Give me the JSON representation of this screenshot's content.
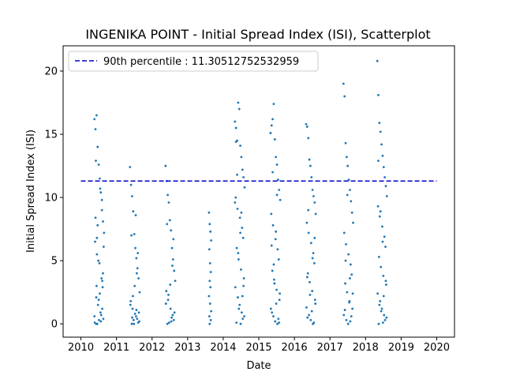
{
  "chart_data": {
    "type": "scatter",
    "title": "INGENIKA POINT - Initial Spread Index (ISI), Scatterplot",
    "xlabel": "Date",
    "ylabel": "Initial Spread Index (ISI)",
    "xlim": [
      2009.5,
      2020.5
    ],
    "ylim": [
      -1.05,
      22.0
    ],
    "x_ticks": [
      "2010",
      "2011",
      "2012",
      "2013",
      "2014",
      "2015",
      "2016",
      "2017",
      "2018",
      "2019",
      "2020"
    ],
    "y_ticks": [
      "0",
      "5",
      "10",
      "15",
      "20"
    ],
    "grid": false,
    "legend_position": "upper-left",
    "reference_line": {
      "label": "90th percentile : 11.30512752532959",
      "value": 11.30512752532959,
      "x_range": [
        2010,
        2020
      ],
      "color": "#0000cc",
      "style": "dashed"
    },
    "point_color": "#1f77b4",
    "series": [
      {
        "x": [
          2010.38,
          2010.41,
          2010.44,
          2010.47,
          2010.5,
          2010.53,
          2010.56,
          2010.59,
          2010.62,
          2010.65,
          2010.4,
          2010.45,
          2010.52,
          2010.58,
          2010.61,
          2010.43,
          2010.48,
          2010.55,
          2010.63,
          2010.39,
          2010.46,
          2010.51,
          2010.57,
          2010.6,
          2010.42,
          2010.54,
          2010.64,
          2010.49,
          2010.44,
          2010.56,
          2010.41,
          2010.62,
          2010.47,
          2010.53,
          2010.38,
          2010.59,
          2010.45,
          2010.5,
          2010.6,
          2010.43
        ],
        "y": [
          16.2,
          15.4,
          16.5,
          14.0,
          12.6,
          11.5,
          10.4,
          9.0,
          8.1,
          7.2,
          6.5,
          5.5,
          4.8,
          3.6,
          2.9,
          2.1,
          1.5,
          0.9,
          0.4,
          0.1,
          0.0,
          0.3,
          0.7,
          1.2,
          12.9,
          10.7,
          6.1,
          5.0,
          3.0,
          0.2,
          8.4,
          4.0,
          7.8,
          2.4,
          0.6,
          9.8,
          6.8,
          1.9,
          3.4,
          0.0
        ]
      },
      {
        "x": [
          2011.38,
          2011.41,
          2011.44,
          2011.47,
          2011.5,
          2011.53,
          2011.56,
          2011.59,
          2011.62,
          2011.65,
          2011.4,
          2011.45,
          2011.52,
          2011.58,
          2011.61,
          2011.43,
          2011.48,
          2011.55,
          2011.63,
          2011.39,
          2011.46,
          2011.51,
          2011.57,
          2011.6,
          2011.42,
          2011.54,
          2011.64,
          2011.49,
          2011.44,
          2011.56
        ],
        "y": [
          12.4,
          11.0,
          10.1,
          8.9,
          7.1,
          6.0,
          5.2,
          4.4,
          3.6,
          2.5,
          1.8,
          1.2,
          0.8,
          0.4,
          0.1,
          0.0,
          0.3,
          0.6,
          0.9,
          1.5,
          2.2,
          3.0,
          4.0,
          5.6,
          7.0,
          8.6,
          0.2,
          0.0,
          0.5,
          1.1
        ]
      },
      {
        "x": [
          2012.38,
          2012.41,
          2012.44,
          2012.47,
          2012.5,
          2012.53,
          2012.56,
          2012.59,
          2012.62,
          2012.65,
          2012.4,
          2012.45,
          2012.52,
          2012.58,
          2012.61,
          2012.43,
          2012.48,
          2012.55,
          2012.63,
          2012.39,
          2012.46,
          2012.51,
          2012.57,
          2012.6,
          2012.42,
          2012.54
        ],
        "y": [
          12.5,
          11.3,
          10.2,
          9.6,
          8.2,
          7.4,
          6.0,
          5.1,
          4.2,
          3.4,
          2.6,
          1.9,
          1.2,
          0.7,
          0.3,
          0.0,
          0.1,
          0.5,
          0.9,
          1.6,
          2.3,
          3.1,
          4.6,
          6.7,
          7.9,
          0.2
        ]
      },
      {
        "x": [
          2013.6,
          2013.62,
          2013.64,
          2013.66,
          2013.61,
          2013.63,
          2013.65,
          2013.62,
          2013.64,
          2013.6,
          2013.63,
          2013.66,
          2013.61,
          2013.65,
          2013.62
        ],
        "y": [
          8.8,
          7.9,
          7.3,
          6.6,
          5.9,
          4.8,
          4.1,
          3.4,
          2.9,
          2.2,
          1.6,
          1.0,
          0.6,
          0.3,
          0.0
        ]
      },
      {
        "x": [
          2014.33,
          2014.36,
          2014.39,
          2014.42,
          2014.45,
          2014.48,
          2014.51,
          2014.54,
          2014.57,
          2014.6,
          2014.35,
          2014.4,
          2014.47,
          2014.53,
          2014.56,
          2014.38,
          2014.43,
          2014.5,
          2014.58,
          2014.34,
          2014.41,
          2014.46,
          2014.52,
          2014.55,
          2014.37,
          2014.49,
          2014.59,
          2014.44,
          2014.39,
          2014.51,
          2014.36,
          2014.57,
          2014.42,
          2014.48,
          2014.33,
          2014.54
        ],
        "y": [
          16.0,
          15.5,
          14.5,
          17.5,
          17.0,
          14.1,
          13.2,
          12.2,
          11.6,
          10.8,
          10.0,
          9.1,
          8.4,
          7.6,
          6.8,
          6.0,
          5.1,
          4.3,
          3.6,
          2.9,
          2.1,
          1.5,
          0.9,
          0.4,
          0.1,
          0.0,
          0.6,
          1.2,
          11.8,
          8.8,
          14.4,
          3.0,
          5.6,
          7.2,
          9.6,
          2.2
        ]
      },
      {
        "x": [
          2015.33,
          2015.36,
          2015.39,
          2015.42,
          2015.45,
          2015.48,
          2015.51,
          2015.54,
          2015.57,
          2015.6,
          2015.35,
          2015.4,
          2015.47,
          2015.53,
          2015.56,
          2015.38,
          2015.43,
          2015.5,
          2015.58,
          2015.34,
          2015.41,
          2015.46,
          2015.52,
          2015.55,
          2015.37,
          2015.49,
          2015.59,
          2015.44,
          2015.39,
          2015.51,
          2015.36,
          2015.57,
          2015.42,
          2015.48
        ],
        "y": [
          15.1,
          15.7,
          16.2,
          17.4,
          14.6,
          13.2,
          12.6,
          11.4,
          10.6,
          9.8,
          8.7,
          7.8,
          6.7,
          5.9,
          5.1,
          4.2,
          3.5,
          2.7,
          1.9,
          1.2,
          0.6,
          0.2,
          0.0,
          0.4,
          0.9,
          1.6,
          2.4,
          3.2,
          12.0,
          10.2,
          6.2,
          0.1,
          4.7,
          7.3
        ]
      },
      {
        "x": [
          2016.33,
          2016.36,
          2016.39,
          2016.42,
          2016.45,
          2016.48,
          2016.51,
          2016.54,
          2016.57,
          2016.6,
          2016.35,
          2016.4,
          2016.47,
          2016.53,
          2016.56,
          2016.38,
          2016.43,
          2016.5,
          2016.58,
          2016.34,
          2016.41,
          2016.46,
          2016.52,
          2016.55,
          2016.37,
          2016.49,
          2016.59,
          2016.44,
          2016.39,
          2016.51,
          2016.36,
          2016.57
        ],
        "y": [
          15.8,
          15.6,
          14.7,
          13.0,
          12.5,
          11.6,
          10.6,
          10.1,
          9.6,
          8.7,
          8.0,
          7.2,
          6.4,
          5.6,
          4.8,
          4.0,
          3.3,
          2.6,
          1.9,
          1.3,
          0.7,
          0.3,
          0.0,
          0.1,
          0.5,
          1.0,
          1.6,
          2.3,
          9.0,
          5.2,
          3.7,
          6.8
        ]
      },
      {
        "x": [
          2017.38,
          2017.41,
          2017.44,
          2017.47,
          2017.5,
          2017.53,
          2017.56,
          2017.59,
          2017.62,
          2017.65,
          2017.4,
          2017.45,
          2017.52,
          2017.58,
          2017.61,
          2017.43,
          2017.48,
          2017.55,
          2017.63,
          2017.39,
          2017.46,
          2017.51,
          2017.57,
          2017.6,
          2017.42,
          2017.54,
          2017.64,
          2017.49,
          2017.44,
          2017.56
        ],
        "y": [
          19.0,
          18.0,
          14.3,
          13.2,
          12.5,
          11.4,
          10.6,
          9.7,
          8.8,
          8.0,
          7.2,
          6.3,
          5.5,
          4.7,
          3.9,
          3.2,
          2.5,
          1.8,
          1.2,
          0.7,
          0.3,
          0.0,
          0.2,
          0.6,
          1.1,
          1.7,
          2.4,
          10.2,
          5.0,
          3.6
        ]
      },
      {
        "x": [
          2018.33,
          2018.36,
          2018.39,
          2018.42,
          2018.45,
          2018.48,
          2018.51,
          2018.54,
          2018.57,
          2018.6,
          2018.35,
          2018.4,
          2018.47,
          2018.53,
          2018.56,
          2018.38,
          2018.43,
          2018.5,
          2018.58,
          2018.34,
          2018.41,
          2018.46,
          2018.52,
          2018.55,
          2018.37,
          2018.49,
          2018.59,
          2018.44,
          2018.39,
          2018.51,
          2018.36,
          2018.57,
          2018.42,
          2018.48
        ],
        "y": [
          20.8,
          18.1,
          15.9,
          15.2,
          14.2,
          13.3,
          12.4,
          11.6,
          10.9,
          10.1,
          9.3,
          8.5,
          7.7,
          6.9,
          6.1,
          5.3,
          4.5,
          3.8,
          3.1,
          2.4,
          1.8,
          1.2,
          0.7,
          0.3,
          0.0,
          0.1,
          0.5,
          1.0,
          1.5,
          2.2,
          12.9,
          3.4,
          8.9,
          6.5
        ]
      }
    ]
  }
}
